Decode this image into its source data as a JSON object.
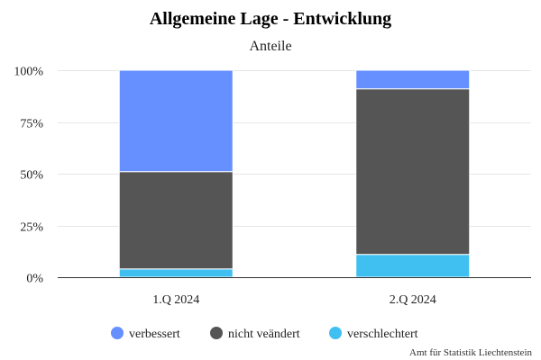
{
  "chart_data": {
    "type": "bar",
    "stacked": true,
    "title": "Allgemeine Lage - Entwicklung",
    "subtitle": "Anteile",
    "categories": [
      "1.Q 2024",
      "2.Q 2024"
    ],
    "series": [
      {
        "name": "verschlechtert",
        "values": [
          4,
          11
        ],
        "color": "#40c0f0"
      },
      {
        "name": "nicht veändert",
        "values": [
          47,
          80
        ],
        "color": "#555555"
      },
      {
        "name": "verbessert",
        "values": [
          49,
          9
        ],
        "color": "#6690ff"
      }
    ],
    "ylim": [
      0,
      100
    ],
    "yticks": [
      "0%",
      "25%",
      "50%",
      "75%",
      "100%"
    ],
    "ytick_values": [
      0,
      25,
      50,
      75,
      100
    ],
    "legend": {
      "position": "bottom",
      "order": [
        "verbessert",
        "nicht veändert",
        "verschlechtert"
      ]
    },
    "grid": true
  },
  "credit": "Amt für Statistik Liechtenstein"
}
